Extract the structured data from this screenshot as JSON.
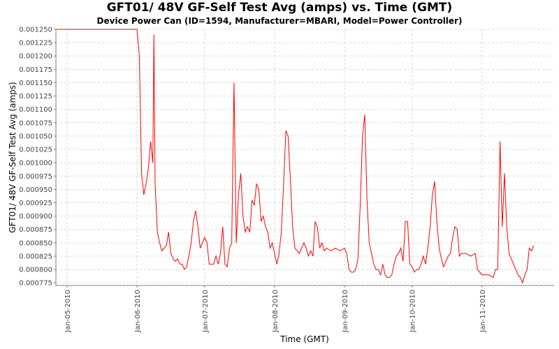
{
  "chart_data": {
    "type": "line",
    "title": "GFT01/ 48V GF-Self Test Avg (amps) vs. Time (GMT)",
    "subtitle": "Device Power Can (ID=1594, Manufacturer=MBARI, Model=Power Controller)",
    "xlabel": "Time (GMT)",
    "ylabel": "GFT01/ 48V GF-Self Test Avg (amps)",
    "xlim": [
      "2010-04-26",
      "2010-12-03"
    ],
    "ylim": [
      0.00077,
      0.00125
    ],
    "x_ticks": [
      {
        "date": "2010-05-01",
        "label": "Jan-05-2010"
      },
      {
        "date": "2010-06-01",
        "label": "Jan-06-2010"
      },
      {
        "date": "2010-07-01",
        "label": "Jan-07-2010"
      },
      {
        "date": "2010-08-01",
        "label": "Jan-08-2010"
      },
      {
        "date": "2010-09-01",
        "label": "Jan-09-2010"
      },
      {
        "date": "2010-10-01",
        "label": "Jan-10-2010"
      },
      {
        "date": "2010-11-01",
        "label": "Jan-11-2010"
      }
    ],
    "y_ticks": [
      {
        "value": 0.000775,
        "label": "0.000775"
      },
      {
        "value": 0.0008,
        "label": "0.000800"
      },
      {
        "value": 0.000825,
        "label": "0.000825"
      },
      {
        "value": 0.00085,
        "label": "0.000850"
      },
      {
        "value": 0.000875,
        "label": "0.000875"
      },
      {
        "value": 0.0009,
        "label": "0.000900"
      },
      {
        "value": 0.000925,
        "label": "0.000925"
      },
      {
        "value": 0.00095,
        "label": "0.000950"
      },
      {
        "value": 0.000975,
        "label": "0.000975"
      },
      {
        "value": 0.001,
        "label": "0.001000"
      },
      {
        "value": 0.001025,
        "label": "0.001025"
      },
      {
        "value": 0.00105,
        "label": "0.001050"
      },
      {
        "value": 0.001075,
        "label": "0.001075"
      },
      {
        "value": 0.0011,
        "label": "0.001100"
      },
      {
        "value": 0.001125,
        "label": "0.001125"
      },
      {
        "value": 0.00115,
        "label": "0.001150"
      },
      {
        "value": 0.001175,
        "label": "0.001175"
      },
      {
        "value": 0.0012,
        "label": "0.001200"
      },
      {
        "value": 0.001225,
        "label": "0.001225"
      },
      {
        "value": 0.00125,
        "label": "0.001250"
      }
    ],
    "grid": true,
    "colors": {
      "series": "#ff0000",
      "grid": "#d8d8d8",
      "axis": "#808080"
    },
    "series": [
      {
        "points": [
          [
            "2010-04-26",
            0.00125
          ],
          [
            "2010-05-15",
            0.00125
          ],
          [
            "2010-06-01",
            0.00125
          ],
          [
            "2010-06-02",
            0.0012
          ],
          [
            "2010-06-03",
            0.00098
          ],
          [
            "2010-06-04",
            0.00094
          ],
          [
            "2010-06-05",
            0.00096
          ],
          [
            "2010-06-06",
            0.00099
          ],
          [
            "2010-06-07",
            0.00104
          ],
          [
            "2010-06-08",
            0.001
          ],
          [
            "2010-06-08T12",
            0.00124
          ],
          [
            "2010-06-09",
            0.00096
          ],
          [
            "2010-06-10",
            0.00087
          ],
          [
            "2010-06-11",
            0.00085
          ],
          [
            "2010-06-12",
            0.000835
          ],
          [
            "2010-06-13",
            0.00084
          ],
          [
            "2010-06-14",
            0.000845
          ],
          [
            "2010-06-15",
            0.00087
          ],
          [
            "2010-06-16",
            0.00083
          ],
          [
            "2010-06-17",
            0.00082
          ],
          [
            "2010-06-18",
            0.000815
          ],
          [
            "2010-06-19",
            0.00082
          ],
          [
            "2010-06-20",
            0.00081
          ],
          [
            "2010-06-21",
            0.00081
          ],
          [
            "2010-06-22",
            0.0008
          ],
          [
            "2010-06-23",
            0.000805
          ],
          [
            "2010-06-24",
            0.000825
          ],
          [
            "2010-06-25",
            0.00085
          ],
          [
            "2010-06-26",
            0.00089
          ],
          [
            "2010-06-27",
            0.00091
          ],
          [
            "2010-06-28",
            0.00088
          ],
          [
            "2010-06-29",
            0.00084
          ],
          [
            "2010-06-30",
            0.00085
          ],
          [
            "2010-07-01",
            0.00086
          ],
          [
            "2010-07-02",
            0.00085
          ],
          [
            "2010-07-03",
            0.00081
          ],
          [
            "2010-07-05",
            0.00081
          ],
          [
            "2010-07-06",
            0.000825
          ],
          [
            "2010-07-07",
            0.00081
          ],
          [
            "2010-07-08",
            0.00083
          ],
          [
            "2010-07-09",
            0.00088
          ],
          [
            "2010-07-10",
            0.00081
          ],
          [
            "2010-07-11",
            0.000805
          ],
          [
            "2010-07-12",
            0.00084
          ],
          [
            "2010-07-13",
            0.00085
          ],
          [
            "2010-07-14",
            0.00115
          ],
          [
            "2010-07-15",
            0.00085
          ],
          [
            "2010-07-16",
            0.00094
          ],
          [
            "2010-07-17",
            0.00098
          ],
          [
            "2010-07-18",
            0.0009
          ],
          [
            "2010-07-19",
            0.00087
          ],
          [
            "2010-07-20",
            0.00088
          ],
          [
            "2010-07-21",
            0.00087
          ],
          [
            "2010-07-22",
            0.00093
          ],
          [
            "2010-07-23",
            0.00092
          ],
          [
            "2010-07-24",
            0.00096
          ],
          [
            "2010-07-25",
            0.00095
          ],
          [
            "2010-07-26",
            0.00089
          ],
          [
            "2010-07-27",
            0.0009
          ],
          [
            "2010-07-28",
            0.00088
          ],
          [
            "2010-07-29",
            0.00087
          ],
          [
            "2010-07-30",
            0.00084
          ],
          [
            "2010-07-31",
            0.00085
          ],
          [
            "2010-08-01",
            0.00083
          ],
          [
            "2010-08-02",
            0.00081
          ],
          [
            "2010-08-03",
            0.00083
          ],
          [
            "2010-08-04",
            0.00087
          ],
          [
            "2010-08-05",
            0.00096
          ],
          [
            "2010-08-06",
            0.00106
          ],
          [
            "2010-08-07",
            0.00105
          ],
          [
            "2010-08-08",
            0.00097
          ],
          [
            "2010-08-09",
            0.00088
          ],
          [
            "2010-08-10",
            0.00084
          ],
          [
            "2010-08-11",
            0.000835
          ],
          [
            "2010-08-12",
            0.00083
          ],
          [
            "2010-08-13",
            0.00084
          ],
          [
            "2010-08-14",
            0.00085
          ],
          [
            "2010-08-15",
            0.00084
          ],
          [
            "2010-08-16",
            0.000825
          ],
          [
            "2010-08-17",
            0.000835
          ],
          [
            "2010-08-18",
            0.000825
          ],
          [
            "2010-08-19",
            0.00089
          ],
          [
            "2010-08-20",
            0.00088
          ],
          [
            "2010-08-21",
            0.00084
          ],
          [
            "2010-08-22",
            0.00085
          ],
          [
            "2010-08-23",
            0.000835
          ],
          [
            "2010-08-24",
            0.00084
          ],
          [
            "2010-08-26",
            0.000835
          ],
          [
            "2010-08-28",
            0.00084
          ],
          [
            "2010-08-30",
            0.000835
          ],
          [
            "2010-09-01",
            0.00084
          ],
          [
            "2010-09-02",
            0.00083
          ],
          [
            "2010-09-03",
            0.0008
          ],
          [
            "2010-09-04",
            0.000795
          ],
          [
            "2010-09-05",
            0.000795
          ],
          [
            "2010-09-06",
            0.0008
          ],
          [
            "2010-09-07",
            0.00082
          ],
          [
            "2010-09-08",
            0.00092
          ],
          [
            "2010-09-09",
            0.00105
          ],
          [
            "2010-09-10",
            0.00109
          ],
          [
            "2010-09-11",
            0.00093
          ],
          [
            "2010-09-12",
            0.00085
          ],
          [
            "2010-09-13",
            0.00083
          ],
          [
            "2010-09-14",
            0.00081
          ],
          [
            "2010-09-15",
            0.0008
          ],
          [
            "2010-09-16",
            0.0008
          ],
          [
            "2010-09-17",
            0.00079
          ],
          [
            "2010-09-18",
            0.00081
          ],
          [
            "2010-09-19",
            0.00079
          ],
          [
            "2010-09-20",
            0.000785
          ],
          [
            "2010-09-21",
            0.000785
          ],
          [
            "2010-09-22",
            0.00079
          ],
          [
            "2010-09-23",
            0.00081
          ],
          [
            "2010-09-24",
            0.000825
          ],
          [
            "2010-09-25",
            0.00083
          ],
          [
            "2010-09-26",
            0.00084
          ],
          [
            "2010-09-27",
            0.000815
          ],
          [
            "2010-09-28",
            0.00089
          ],
          [
            "2010-09-29",
            0.00089
          ],
          [
            "2010-09-30",
            0.00081
          ],
          [
            "2010-10-01",
            0.000805
          ],
          [
            "2010-10-02",
            0.000795
          ],
          [
            "2010-10-03",
            0.0008
          ],
          [
            "2010-10-04",
            0.0008
          ],
          [
            "2010-10-05",
            0.00081
          ],
          [
            "2010-10-06",
            0.000825
          ],
          [
            "2010-10-07",
            0.00081
          ],
          [
            "2010-10-08",
            0.00084
          ],
          [
            "2010-10-09",
            0.00088
          ],
          [
            "2010-10-10",
            0.00094
          ],
          [
            "2010-10-11",
            0.000965
          ],
          [
            "2010-10-12",
            0.00089
          ],
          [
            "2010-10-13",
            0.00084
          ],
          [
            "2010-10-14",
            0.00082
          ],
          [
            "2010-10-15",
            0.000805
          ],
          [
            "2010-10-16",
            0.000815
          ],
          [
            "2010-10-17",
            0.000825
          ],
          [
            "2010-10-18",
            0.00083
          ],
          [
            "2010-10-19",
            0.00086
          ],
          [
            "2010-10-20",
            0.00088
          ],
          [
            "2010-10-21",
            0.000875
          ],
          [
            "2010-10-22",
            0.000825
          ],
          [
            "2010-10-23",
            0.00083
          ],
          [
            "2010-10-25",
            0.00083
          ],
          [
            "2010-10-27",
            0.000825
          ],
          [
            "2010-10-29",
            0.00083
          ],
          [
            "2010-10-30",
            0.0008
          ],
          [
            "2010-11-01",
            0.00079
          ],
          [
            "2010-11-02",
            0.00079
          ],
          [
            "2010-11-04",
            0.00079
          ],
          [
            "2010-11-06",
            0.000785
          ],
          [
            "2010-11-07",
            0.0008
          ],
          [
            "2010-11-08",
            0.0008
          ],
          [
            "2010-11-09",
            0.00104
          ],
          [
            "2010-11-10",
            0.00088
          ],
          [
            "2010-11-11",
            0.00098
          ],
          [
            "2010-11-12",
            0.00088
          ],
          [
            "2010-11-13",
            0.00083
          ],
          [
            "2010-11-14",
            0.00082
          ],
          [
            "2010-11-15",
            0.00081
          ],
          [
            "2010-11-16",
            0.0008
          ],
          [
            "2010-11-17",
            0.00079
          ],
          [
            "2010-11-18",
            0.000785
          ],
          [
            "2010-11-19",
            0.000775
          ],
          [
            "2010-11-20",
            0.00079
          ],
          [
            "2010-11-21",
            0.0008
          ],
          [
            "2010-11-22",
            0.00084
          ],
          [
            "2010-11-23",
            0.000835
          ],
          [
            "2010-11-24",
            0.000845
          ]
        ]
      }
    ]
  }
}
